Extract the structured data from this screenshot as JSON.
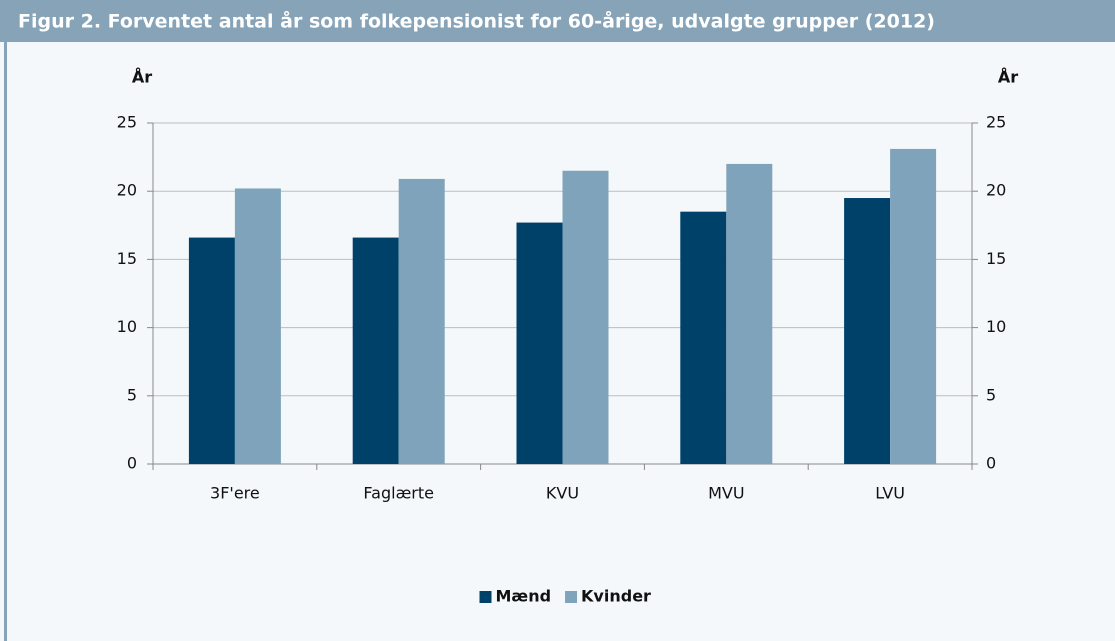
{
  "chart_data": {
    "type": "bar",
    "title": "Figur 2. Forventet antal år som folkepensionist for 60-årige, udvalgte grupper (2012)",
    "y_label": "År",
    "y2_label": "År",
    "categories": [
      "3F'ere",
      "Faglærte",
      "KVU",
      "MVU",
      "LVU"
    ],
    "series": [
      {
        "name": "Mænd",
        "color": "#00416a",
        "values": [
          16.6,
          16.6,
          17.7,
          18.5,
          19.5
        ]
      },
      {
        "name": "Kvinder",
        "color": "#7fa3ba",
        "values": [
          20.2,
          20.9,
          21.5,
          22.0,
          23.1
        ]
      }
    ],
    "ylim": [
      0,
      25
    ],
    "yticks": [
      0,
      5,
      10,
      15,
      20,
      25
    ],
    "y2lim": [
      0,
      25
    ],
    "y2ticks": [
      0,
      5,
      10,
      15,
      20,
      25
    ],
    "grid": true,
    "legend": "bottom"
  }
}
